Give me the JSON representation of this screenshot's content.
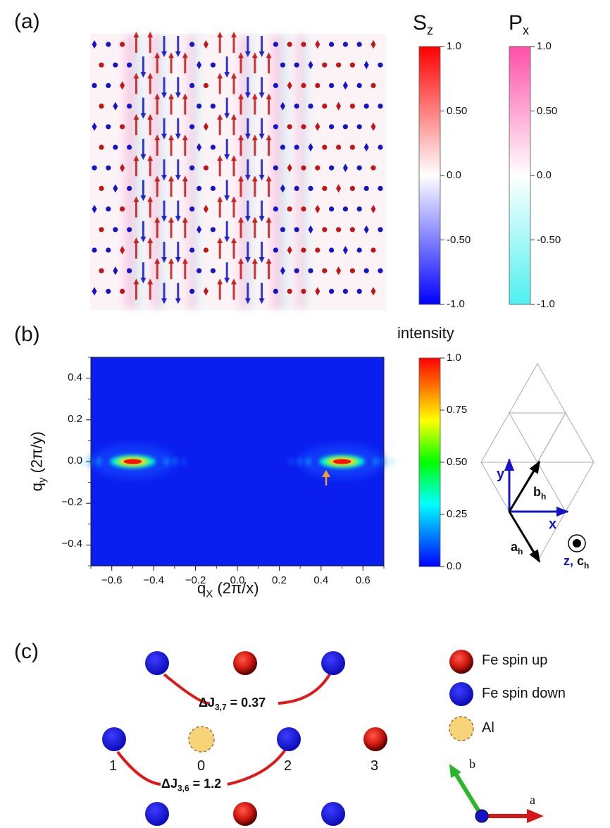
{
  "panel_a": {
    "letter": "(a)",
    "colorbar_sz": {
      "title_main": "S",
      "title_sub": "z",
      "ticks": [
        "1.0",
        "0.50",
        "0.0",
        "-0.50",
        "-1.0"
      ]
    },
    "colorbar_px": {
      "title_main": "P",
      "title_sub": "x",
      "ticks": [
        "1.0",
        "0.50",
        "0.0",
        "-0.50",
        "-1.0"
      ]
    }
  },
  "panel_b": {
    "letter": "(b)",
    "xlabel_main": "q",
    "xlabel_sub": "X",
    "xlabel_unit": " (2π/x)",
    "ylabel_main": "q",
    "ylabel_sub": "y",
    "ylabel_unit": " (2π/y)",
    "colorbar": {
      "title": "intensity",
      "ticks": [
        "1.0",
        "0.75",
        "0.50",
        "0.25",
        "0.0"
      ]
    },
    "lattice": {
      "y": "y",
      "x": "x",
      "b_main": "b",
      "b_sub": "h",
      "a_main": "a",
      "a_sub": "h",
      "z_main": "z, c",
      "z_sub": "h"
    }
  },
  "chart_data": {
    "type": "heatmap",
    "xlabel": "qX (2π/x)",
    "ylabel": "qy (2π/y)",
    "xlim": [
      -0.7,
      0.7
    ],
    "ylim": [
      -0.5,
      0.5
    ],
    "x_ticks": [
      "−0.6",
      "−0.4",
      "−0.2",
      "0.0",
      "0.2",
      "0.4",
      "0.6"
    ],
    "y_ticks": [
      "0.4",
      "0.2",
      "0.0",
      "−0.2",
      "−0.4"
    ],
    "colorbar_range": [
      0.0,
      1.0
    ],
    "peaks": [
      {
        "qx": -0.5,
        "qy": 0.0,
        "intensity": 1.0
      },
      {
        "qx": 0.5,
        "qy": 0.0,
        "intensity": 1.0
      }
    ],
    "arrow_marker_qx": 0.42
  },
  "panel_c": {
    "letter": "(c)",
    "dj37_main": "ΔJ",
    "dj37_sub": "3,7",
    "dj37_val": " = 0.37",
    "dj36_main": "ΔJ",
    "dj36_sub": "3,6",
    "dj36_val": " = 1.2",
    "site_labels": [
      "1",
      "0",
      "2",
      "3"
    ],
    "legend": [
      "Fe spin up",
      "Fe spin down",
      "Al"
    ],
    "axes": {
      "a": "a",
      "b": "b"
    }
  },
  "colors": {
    "spin_up": "#c41414",
    "spin_down": "#1414c8",
    "map_background": "#0a1ef0",
    "bond_red": "#e01818",
    "al_fill": "#f8d478"
  }
}
